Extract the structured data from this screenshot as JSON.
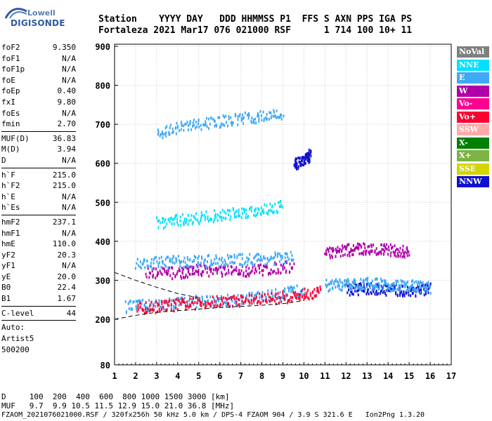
{
  "logo": {
    "line1": "Lowell",
    "line2": "DIGISONDE",
    "color": "#2f5aa0"
  },
  "header": {
    "row1": "Station    YYYY DAY   DDD HHMMSS P1  FFS S AXN PPS IGA PS",
    "row2": "Fortaleza 2021 Mar17 076 021000 RSF      1 714 100 10+ 11"
  },
  "params": {
    "group1": [
      {
        "k": "foF2",
        "v": "9.350"
      },
      {
        "k": "foF1",
        "v": "N/A"
      },
      {
        "k": "foF1p",
        "v": "N/A"
      },
      {
        "k": "foE",
        "v": "N/A"
      },
      {
        "k": "foEp",
        "v": "0.40"
      },
      {
        "k": "fxI",
        "v": "9.80"
      },
      {
        "k": "foEs",
        "v": "N/A"
      },
      {
        "k": "fmin",
        "v": "2.70"
      }
    ],
    "group2": [
      {
        "k": "MUF(D)",
        "v": "36.83"
      },
      {
        "k": "M(D)",
        "v": "3.94"
      },
      {
        "k": "D",
        "v": "N/A"
      }
    ],
    "group3": [
      {
        "k": "h`F",
        "v": "215.0"
      },
      {
        "k": "h`F2",
        "v": "215.0"
      },
      {
        "k": "h`E",
        "v": "N/A"
      },
      {
        "k": "h`Es",
        "v": "N/A"
      }
    ],
    "group4": [
      {
        "k": "hmF2",
        "v": "237.1"
      },
      {
        "k": "hmF1",
        "v": "N/A"
      },
      {
        "k": "hmE",
        "v": "110.0"
      },
      {
        "k": "yF2",
        "v": "20.3"
      },
      {
        "k": "yF1",
        "v": "N/A"
      },
      {
        "k": "yE",
        "v": "20.0"
      },
      {
        "k": "B0",
        "v": "22.4"
      },
      {
        "k": "B1",
        "v": "1.67"
      }
    ],
    "group5": [
      {
        "k": "C-level",
        "v": "44"
      }
    ],
    "notes": [
      "Auto:",
      "Artist5",
      "500200"
    ]
  },
  "chart_data": {
    "type": "scatter",
    "x_range": [
      1,
      17
    ],
    "y_range": [
      80,
      900
    ],
    "x_ticks": [
      "1",
      "2",
      "3",
      "4",
      "5",
      "6",
      "7",
      "8",
      "9",
      "10",
      "11",
      "12",
      "13",
      "14",
      "15",
      "16",
      "17"
    ],
    "y_ticks": [
      "80",
      "200",
      "300",
      "400",
      "500",
      "600",
      "700",
      "800",
      "900"
    ],
    "grid": true,
    "legend_placement": "right",
    "legend": [
      {
        "name": "NoVal",
        "color": "#7f7f7f",
        "text": "#ffffff"
      },
      {
        "name": "NNE",
        "color": "#00e0ff",
        "text": "#ffffff"
      },
      {
        "name": "E",
        "color": "#3fa9f5",
        "text": "#ffffff"
      },
      {
        "name": "W",
        "color": "#b000a8",
        "text": "#ffffff"
      },
      {
        "name": "Vo-",
        "color": "#ff0090",
        "text": "#ffffff"
      },
      {
        "name": "Vo+",
        "color": "#ff0033",
        "text": "#ffffff"
      },
      {
        "name": "SSW",
        "color": "#ffaaaa",
        "text": "#ffffff"
      },
      {
        "name": "X-",
        "color": "#008000",
        "text": "#ffffff"
      },
      {
        "name": "X+",
        "color": "#7cb342",
        "text": "#ffffff"
      },
      {
        "name": "SSE",
        "color": "#d4d400",
        "text": "#ffffff"
      },
      {
        "name": "NNW",
        "color": "#1010d0",
        "text": "#ffffff"
      }
    ],
    "traces": [
      {
        "color": "#3fa9f5",
        "x": [
          1.5,
          3.0,
          4.5,
          6.0,
          7.5,
          9.0,
          10.0
        ],
        "y": [
          235,
          240,
          248,
          250,
          258,
          268,
          280
        ]
      },
      {
        "color": "#ff0033",
        "x": [
          2.0,
          3.5,
          5.0,
          6.5,
          8.0,
          9.5,
          10.8
        ],
        "y": [
          230,
          238,
          245,
          250,
          255,
          262,
          275
        ]
      },
      {
        "color": "#b000a8",
        "x": [
          2.5,
          4.0,
          5.0,
          6.5,
          8.0,
          9.5
        ],
        "y": [
          320,
          322,
          330,
          325,
          330,
          340
        ]
      },
      {
        "color": "#3fa9f5",
        "x": [
          2.0,
          3.5,
          5.0,
          6.5,
          8.0,
          9.5
        ],
        "y": [
          345,
          350,
          352,
          355,
          358,
          362
        ]
      },
      {
        "color": "#00e0ff",
        "x": [
          3.0,
          4.5,
          6.0,
          7.5,
          9.0
        ],
        "y": [
          450,
          460,
          470,
          480,
          495
        ]
      },
      {
        "color": "#3fa9f5",
        "x": [
          3.0,
          4.5,
          6.0,
          7.5,
          9.0
        ],
        "y": [
          680,
          700,
          710,
          720,
          730
        ]
      },
      {
        "color": "#1010d0",
        "x": [
          12.0,
          13.0,
          14.0,
          15.0,
          16.0
        ],
        "y": [
          280,
          282,
          278,
          276,
          280
        ]
      },
      {
        "color": "#b000a8",
        "x": [
          11.0,
          12.0,
          13.0,
          14.0,
          15.0
        ],
        "y": [
          370,
          380,
          385,
          380,
          375
        ]
      },
      {
        "color": "#3fa9f5",
        "x": [
          11.0,
          12.0,
          13.0,
          14.0,
          15.0,
          16.0
        ],
        "y": [
          290,
          292,
          295,
          290,
          288,
          285
        ]
      },
      {
        "color": "#1010d0",
        "x": [
          9.5,
          10.0,
          10.3
        ],
        "y": [
          600,
          610,
          625
        ]
      }
    ],
    "fit_curve": {
      "x": [
        1.0,
        2.0,
        3.0,
        4.0,
        5.0,
        6.0,
        7.0,
        8.0,
        9.0,
        10.0
      ],
      "y": [
        200,
        210,
        218,
        222,
        226,
        230,
        233,
        236,
        240,
        248
      ]
    },
    "fit_curve_upper": {
      "x": [
        1.0,
        2.0,
        3.0,
        4.0,
        5.0
      ],
      "y": [
        320,
        300,
        282,
        266,
        255
      ]
    }
  },
  "footer": {
    "d_line": "D     100  200  400  600  800 1000 1500 3000 [km]",
    "muf_line": "MUF   9.7  9.9 10.5 11.5 12.9 15.0 21.0 36.8 [MHz]",
    "file_line": "FZAOM_2021076021000.RSF / 320fx256h 50 kHz 5.0 km / DPS-4 FZAOM 904 / 3.9 S 321.6 E   Ion2Png 1.3.20"
  }
}
